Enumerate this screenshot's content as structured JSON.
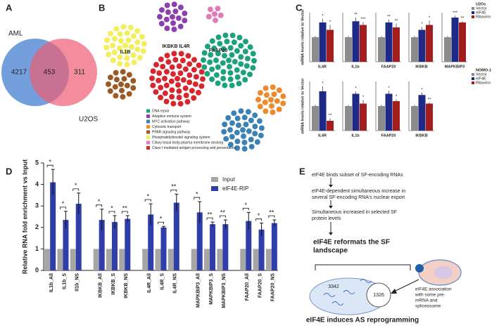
{
  "panel_labels": [
    "A",
    "B",
    "C",
    "D",
    "E"
  ],
  "venn": {
    "sets": [
      "AML",
      "U2OS"
    ],
    "values": [
      4217,
      453,
      311
    ],
    "colors": [
      "#5b8fd6",
      "#ee5c73"
    ]
  },
  "network": {
    "labels": [
      "IL1B",
      "IKBKB IL4R",
      "FAAP20"
    ],
    "legend": [
      {
        "name": "DNA repair",
        "color": "#1aa37a"
      },
      {
        "name": "Adaptive immune system",
        "color": "#8e3fae"
      },
      {
        "name": "MYC activation pathway",
        "color": "#3a82b5"
      },
      {
        "name": "Cytosolic transport",
        "color": "#ee8a2a"
      },
      {
        "name": "PPAR signaling pathway",
        "color": "#9b5a25"
      },
      {
        "name": "Phosphatidylinositol signaling system",
        "color": "#f3ee5a"
      },
      {
        "name": "Ciliary basal body-plasma membrane docking",
        "color": "#e07ab8"
      },
      {
        "name": "Class I mediated antigen processing and presentation",
        "color": "#d7262e"
      }
    ]
  },
  "panel_c": {
    "ylabel": "mRNA levels relative to Vector",
    "ylim": [
      0,
      2
    ],
    "rows": [
      {
        "title": "U2Os",
        "genes": [
          "IL4R",
          "IL1b",
          "FAAP20",
          "IKBKB",
          "MAPKBIP3"
        ],
        "series": [
          {
            "name": "Vector",
            "color": "#8c8c8c",
            "values": [
              1,
              1,
              1,
              1,
              1
            ],
            "errors": [
              0.05,
              0.05,
              0.05,
              0.05,
              0.05
            ]
          },
          {
            "name": "eIF4E",
            "color": "#1e2a86",
            "values": [
              1.6,
              1.65,
              1.6,
              1.3,
              1.8
            ],
            "errors": [
              0.15,
              0.15,
              0.12,
              0.12,
              0.08
            ],
            "labels": [
              "*",
              "**",
              "**",
              "*",
              "***"
            ]
          },
          {
            "name": "Ribavirin",
            "color": "#a31d1d",
            "values": [
              1.3,
              1.5,
              1.4,
              1.5,
              1.6
            ],
            "errors": [
              0.2,
              0.12,
              0.15,
              0.18,
              0.06
            ],
            "labels": [
              "*",
              "***",
              "**",
              "*",
              "**"
            ]
          }
        ]
      },
      {
        "title": "NOMO-1",
        "genes": [
          "IL4R",
          "IL1b",
          "FAAP20",
          "IKBKB"
        ],
        "series": [
          {
            "name": "Vector",
            "color": "#8c8c8c",
            "values": [
              1,
              1,
              1,
              1
            ],
            "errors": [
              0.05,
              0.05,
              0.05,
              0.05
            ]
          },
          {
            "name": "eIF4E",
            "color": "#1e2a86",
            "values": [
              1.6,
              1.5,
              1.5,
              1.45
            ],
            "errors": [
              0.2,
              0.1,
              0.12,
              0.1
            ],
            "labels": [
              "*",
              "*",
              "*",
              "*"
            ]
          },
          {
            "name": "Ribavirin",
            "color": "#a31d1d",
            "values": [
              0.4,
              1.1,
              1.2,
              1.1
            ],
            "errors": [
              0.1,
              0.15,
              0.08,
              0.05
            ],
            "labels": [
              "**",
              "*",
              "*",
              "**"
            ]
          }
        ]
      }
    ]
  },
  "chart_data": {
    "type": "bar",
    "ylabel": "Relative RNA fold enrichment vs Input",
    "categories": [
      "IL1b_All",
      "IL1b_S",
      "Il1b_NS",
      "IKBKB_All",
      "IKBKB_S",
      "IKBKB_NS",
      "IL4R_All",
      "IL4R_S",
      "IL4R_NS",
      "MAPKBIP3_All",
      "MAPKBIP3_S",
      "MAPKBIP3_NS",
      "FAAP20_All",
      "FAAP20_S",
      "FAAP20_NS"
    ],
    "ylim": [
      0,
      5
    ],
    "yticks": [
      0,
      1,
      2,
      3,
      4,
      5
    ],
    "series": [
      {
        "name": "Input",
        "color": "#a6a6a6",
        "values": [
          1,
          1,
          1,
          1,
          1,
          1,
          1,
          1,
          1,
          1,
          1,
          1,
          1,
          1,
          1
        ]
      },
      {
        "name": "eIF4E-RIP",
        "color": "#2f3ea8",
        "values": [
          4.1,
          2.35,
          3.1,
          2.35,
          2.25,
          2.4,
          2.6,
          2.0,
          3.15,
          2.7,
          2.15,
          2.15,
          2.3,
          1.9,
          2.2
        ],
        "errors": [
          0.6,
          0.4,
          0.5,
          0.5,
          0.3,
          0.15,
          0.5,
          0.05,
          0.4,
          0.5,
          0.1,
          0.2,
          0.4,
          0.3,
          0.15
        ],
        "significance": [
          "*",
          "*",
          "*",
          "*",
          "*",
          "**",
          "*",
          "*",
          "**",
          "*",
          "**",
          "**",
          "*",
          "*",
          "**"
        ]
      }
    ]
  },
  "flow": {
    "steps": [
      [
        "eIF4E binds subset of SF-encoding RNAs"
      ],
      [
        "eIF4E-dependent simultaneous increase in",
        "several  SF-encoding RNA's nuclear export"
      ],
      [
        "Simultaneous increased in selected SF",
        "protein levels"
      ]
    ],
    "headline": [
      "eIF4E reformats the  SF",
      "landscape"
    ],
    "counts": [
      3342,
      1326
    ],
    "note": [
      "eIF4E association",
      "with some pre-",
      "mRNA and",
      "spliceosome"
    ],
    "conclusion": "eIF4E induces AS reprogramming"
  }
}
